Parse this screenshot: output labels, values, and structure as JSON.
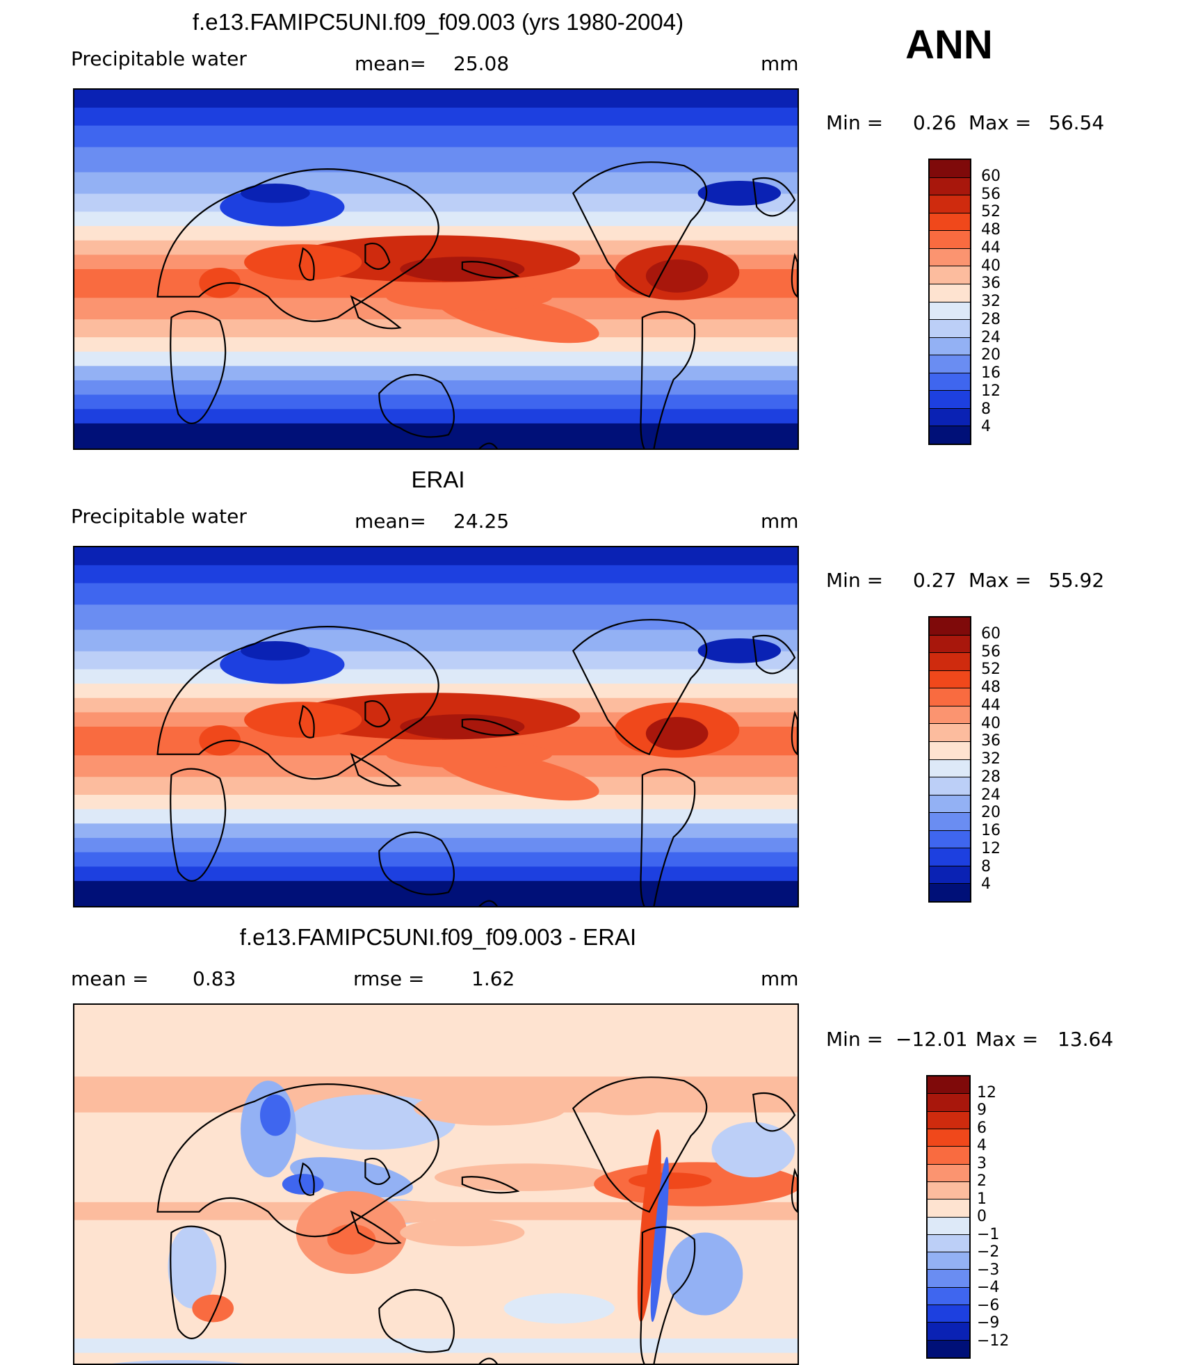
{
  "annual_label": "ANN",
  "panels": [
    {
      "title": "f.e13.FAMIPC5UNI.f09_f09.003 (yrs 1980-2004)",
      "left_label": "Precipitable  water",
      "mid_label": "mean=",
      "mid_value": "25.08",
      "unit": "mm",
      "min_label": "Min  =",
      "min_value": "0.26",
      "max_label": "Max  =",
      "max_value": "56.54",
      "variant": "model"
    },
    {
      "title": "ERAI",
      "left_label": "Precipitable  water",
      "mid_label": "mean=",
      "mid_value": "24.25",
      "unit": "mm",
      "min_label": "Min  =",
      "min_value": "0.27",
      "max_label": "Max  =",
      "max_value": "55.92",
      "variant": "obs"
    },
    {
      "title": "f.e13.FAMIPC5UNI.f09_f09.003 - ERAI",
      "left_label": "mean  =",
      "left_value": "0.83",
      "mid_label": "rmse  =",
      "mid_value": "1.62",
      "unit": "mm",
      "min_label": "Min  =",
      "min_value": "−12.01",
      "max_label": "Max  =",
      "max_value": "13.64",
      "variant": "diff"
    }
  ],
  "colorbars": {
    "pw": {
      "ticks": [
        "60",
        "56",
        "52",
        "48",
        "44",
        "40",
        "36",
        "32",
        "28",
        "24",
        "20",
        "16",
        "12",
        "8",
        "4"
      ],
      "colors": [
        "#7f0a0a",
        "#a8170c",
        "#cf2b0e",
        "#f0481b",
        "#f96b40",
        "#fb9470",
        "#fcbc9e",
        "#fee3d0",
        "#dde9f8",
        "#bccff7",
        "#93b1f4",
        "#6a8df2",
        "#3f66ef",
        "#1d40e0",
        "#0a22b4",
        "#001078"
      ]
    },
    "diff": {
      "ticks": [
        "12",
        "9",
        "6",
        "4",
        "3",
        "2",
        "1",
        "0",
        "−1",
        "−2",
        "−3",
        "−4",
        "−6",
        "−9",
        "−12"
      ],
      "colors": [
        "#7f0a0a",
        "#a8170c",
        "#cf2b0e",
        "#f0481b",
        "#f96b40",
        "#fb9470",
        "#fcbc9e",
        "#fee3d0",
        "#dde9f8",
        "#bccff7",
        "#93b1f4",
        "#6a8df2",
        "#3f66ef",
        "#1d40e0",
        "#0a22b4",
        "#001078"
      ]
    }
  }
}
